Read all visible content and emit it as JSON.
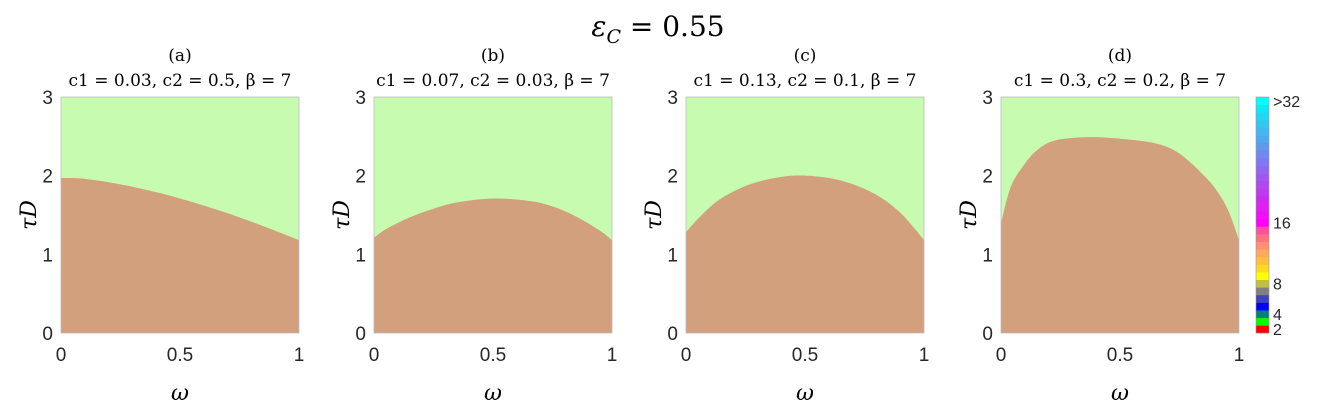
{
  "chart_data": {
    "type": "area",
    "suptitle": "εC = 0.55",
    "suptitle_parts": {
      "main": "ε",
      "sub": "C",
      "rest": " = 0.55"
    },
    "colors": {
      "above": "#c6fbb0",
      "below": "#d3a07e"
    },
    "panels": [
      {
        "label": "(a)",
        "title": "c1 = 0.03, c2 = 0.5, β = 7",
        "xlabel": "ω",
        "ylabel": "τD",
        "xlim": [
          0,
          1
        ],
        "ylim": [
          0,
          3
        ],
        "xticks": [
          "0",
          "0.5",
          "1"
        ],
        "yticks": [
          "0",
          "1",
          "2",
          "3"
        ],
        "boundary": {
          "x": [
            0,
            0.1,
            0.25,
            0.4,
            0.5,
            0.6,
            0.75,
            0.9,
            1
          ],
          "y": [
            1.97,
            1.96,
            1.89,
            1.79,
            1.71,
            1.62,
            1.47,
            1.3,
            1.18
          ]
        }
      },
      {
        "label": "(b)",
        "title": "c1 = 0.07, c2 = 0.03, β = 7",
        "xlabel": "ω",
        "ylabel": "τD",
        "xlim": [
          0,
          1
        ],
        "ylim": [
          0,
          3
        ],
        "xticks": [
          "0",
          "0.5",
          "1"
        ],
        "yticks": [
          "0",
          "1",
          "2",
          "3"
        ],
        "boundary": {
          "x": [
            0,
            0.05,
            0.15,
            0.25,
            0.35,
            0.5,
            0.65,
            0.75,
            0.85,
            0.95,
            1
          ],
          "y": [
            1.21,
            1.32,
            1.47,
            1.58,
            1.66,
            1.71,
            1.68,
            1.61,
            1.48,
            1.3,
            1.18
          ]
        }
      },
      {
        "label": "(c)",
        "title": "c1 = 0.13, c2 = 0.1, β = 7",
        "xlabel": "ω",
        "ylabel": "τD",
        "xlim": [
          0,
          1
        ],
        "ylim": [
          0,
          3
        ],
        "xticks": [
          "0",
          "0.5",
          "1"
        ],
        "yticks": [
          "0",
          "1",
          "2",
          "3"
        ],
        "boundary": {
          "x": [
            0,
            0.05,
            0.12,
            0.2,
            0.3,
            0.45,
            0.6,
            0.72,
            0.82,
            0.9,
            0.96,
            1
          ],
          "y": [
            1.28,
            1.45,
            1.65,
            1.8,
            1.92,
            2.0,
            1.97,
            1.87,
            1.72,
            1.53,
            1.33,
            1.18
          ]
        }
      },
      {
        "label": "(d)",
        "title": "c1 = 0.3, c2 = 0.2, β = 7",
        "xlabel": "ω",
        "ylabel": "τD",
        "xlim": [
          0,
          1
        ],
        "ylim": [
          0,
          3
        ],
        "xticks": [
          "0",
          "0.5",
          "1"
        ],
        "yticks": [
          "0",
          "1",
          "2",
          "3"
        ],
        "boundary": {
          "x": [
            0,
            0.04,
            0.09,
            0.15,
            0.23,
            0.37,
            0.5,
            0.65,
            0.75,
            0.86,
            0.92,
            0.96,
            1
          ],
          "y": [
            1.4,
            1.85,
            2.11,
            2.32,
            2.45,
            2.49,
            2.47,
            2.41,
            2.28,
            1.98,
            1.75,
            1.52,
            1.18
          ]
        }
      }
    ],
    "colorbar": {
      "range": [
        2,
        32
      ],
      "ticks": [
        {
          "value": 2,
          "label": "2"
        },
        {
          "value": 4,
          "label": "4"
        },
        {
          "value": 8,
          "label": "8"
        },
        {
          "value": 16,
          "label": "16"
        },
        {
          "value": 32,
          "label": ">32"
        }
      ],
      "colors": [
        "#ff0000",
        "#00ff00",
        "#008080",
        "#0000ff",
        "#4040c0",
        "#808080",
        "#c0c040",
        "#ffff00",
        "#ffd820",
        "#ffc040",
        "#ffa860",
        "#ff9070",
        "#ff7080",
        "#ff50a0",
        "#ff00ff",
        "#f010f8",
        "#e020f0",
        "#d028f0",
        "#c038f0",
        "#b048f0",
        "#a058f0",
        "#9068f0",
        "#8078f0",
        "#7088f0",
        "#6098f0",
        "#50a8f0",
        "#40b8f0",
        "#30c8f0",
        "#20d8f4",
        "#10e8f8",
        "#00ffff"
      ]
    }
  }
}
